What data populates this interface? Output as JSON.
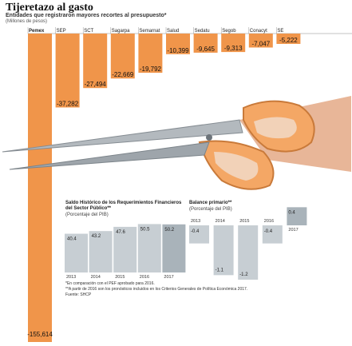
{
  "header": {
    "title": "Tijeretazo al gasto",
    "subtitle": "Entidades que registraron mayores recortes al presupuesto*",
    "units": "(Millones de pesos)"
  },
  "chart_data": [
    {
      "type": "bar",
      "categories": [
        "Pemex",
        "SEP",
        "SCT",
        "Sagarpa",
        "Semarnat",
        "Salud",
        "Sedatu",
        "Segob",
        "Conacyt",
        "SE"
      ],
      "values": [
        -155614,
        -37282,
        -27494,
        -22669,
        -19792,
        -10399,
        -9645,
        -9313,
        -7047,
        -5222
      ],
      "labels": [
        "-155,614",
        "-37,282",
        "-27,494",
        "-22,669",
        "-19,792",
        "-10,399",
        "-9,645",
        "-9,313",
        "-7,047",
        "-5,222"
      ],
      "title": "Entidades que registraron mayores recortes al presupuesto*",
      "ylabel": "(Millones de pesos)",
      "color": "#f0954a"
    },
    {
      "type": "bar",
      "title": "Saldo Histórico de los Requerimientos Financieros del Sector Público**",
      "units": "(Porcentaje del PIB)",
      "categories": [
        "2013",
        "2014",
        "2015",
        "2016",
        "2017"
      ],
      "values": [
        40.4,
        43.2,
        47.6,
        50.5,
        50.2
      ],
      "labels": [
        "40.4",
        "43.2",
        "47.6",
        "50.5",
        "50.2"
      ],
      "color": "#c7ced3",
      "highlight_color": "#a9b3ba"
    },
    {
      "type": "bar",
      "title": "Balance primario**",
      "units": "(Porcentaje del PIB)",
      "categories": [
        "2013",
        "2014",
        "2015",
        "2016",
        "2017"
      ],
      "values": [
        -0.4,
        -1.1,
        -1.2,
        -0.4,
        0.4
      ],
      "labels": [
        "-0.4",
        "-1.1",
        "-1.2",
        "-0.4",
        "0.4"
      ],
      "color": "#c7ced3",
      "highlight_color": "#a9b3ba"
    }
  ],
  "notes": [
    "*En comparación con el PEF aprobado para 2016.",
    "**A partir de 2016 son los pronósticos incluidos en los Criterios Generales de Política Económica 2017.",
    "Fuente: SHCP"
  ]
}
